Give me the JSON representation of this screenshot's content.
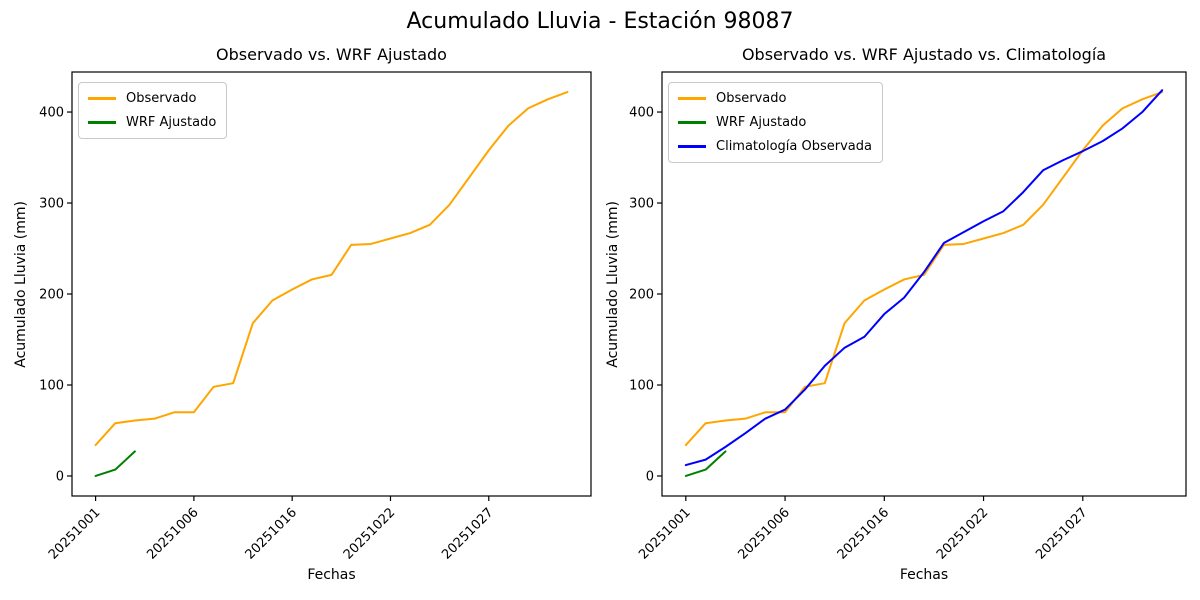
{
  "suptitle": "Acumulado Lluvia - Estación 98087",
  "chart_data": [
    {
      "type": "line",
      "title": "Observado vs. WRF Ajustado",
      "xlabel": "Fechas",
      "ylabel": "Acumulado Lluvia (mm)",
      "x_tick_positions": [
        0,
        5,
        10,
        15,
        20
      ],
      "x_tick_labels": [
        "20251001",
        "20251006",
        "20251016",
        "20251022",
        "20251027"
      ],
      "y_ticks": [
        0,
        100,
        200,
        300,
        400
      ],
      "xlim": [
        -1.2,
        25.2
      ],
      "ylim": [
        -22,
        444
      ],
      "n_points": 25,
      "grid": false,
      "legend_position": "upper left",
      "series": [
        {
          "name": "Observado",
          "color": "#FFA500",
          "values": [
            34,
            58,
            61,
            63,
            70,
            70,
            98,
            102,
            168,
            193,
            205,
            216,
            221,
            254,
            255,
            261,
            267,
            276,
            298,
            328,
            358,
            385,
            404,
            414,
            422
          ]
        },
        {
          "name": "WRF Ajustado",
          "color": "#008000",
          "values": [
            0,
            7,
            27
          ]
        }
      ]
    },
    {
      "type": "line",
      "title": "Observado vs. WRF Ajustado vs. Climatología",
      "xlabel": "Fechas",
      "ylabel": "Acumulado Lluvia (mm)",
      "x_tick_positions": [
        0,
        5,
        10,
        15,
        20
      ],
      "x_tick_labels": [
        "20251001",
        "20251006",
        "20251016",
        "20251022",
        "20251027"
      ],
      "y_ticks": [
        0,
        100,
        200,
        300,
        400
      ],
      "xlim": [
        -1.2,
        25.2
      ],
      "ylim": [
        -22,
        444
      ],
      "n_points": 25,
      "grid": false,
      "legend_position": "upper left",
      "series": [
        {
          "name": "Observado",
          "color": "#FFA500",
          "values": [
            34,
            58,
            61,
            63,
            70,
            70,
            98,
            102,
            168,
            193,
            205,
            216,
            221,
            254,
            255,
            261,
            267,
            276,
            298,
            328,
            358,
            385,
            404,
            414,
            422
          ]
        },
        {
          "name": "WRF Ajustado",
          "color": "#008000",
          "values": [
            0,
            7,
            27
          ]
        },
        {
          "name": "Climatología Observada",
          "color": "#0000FF",
          "values": [
            12,
            18,
            32,
            47,
            63,
            73,
            95,
            121,
            141,
            153,
            178,
            196,
            224,
            256,
            268,
            280,
            291,
            312,
            336,
            347,
            357,
            368,
            382,
            400,
            424
          ]
        }
      ]
    }
  ]
}
